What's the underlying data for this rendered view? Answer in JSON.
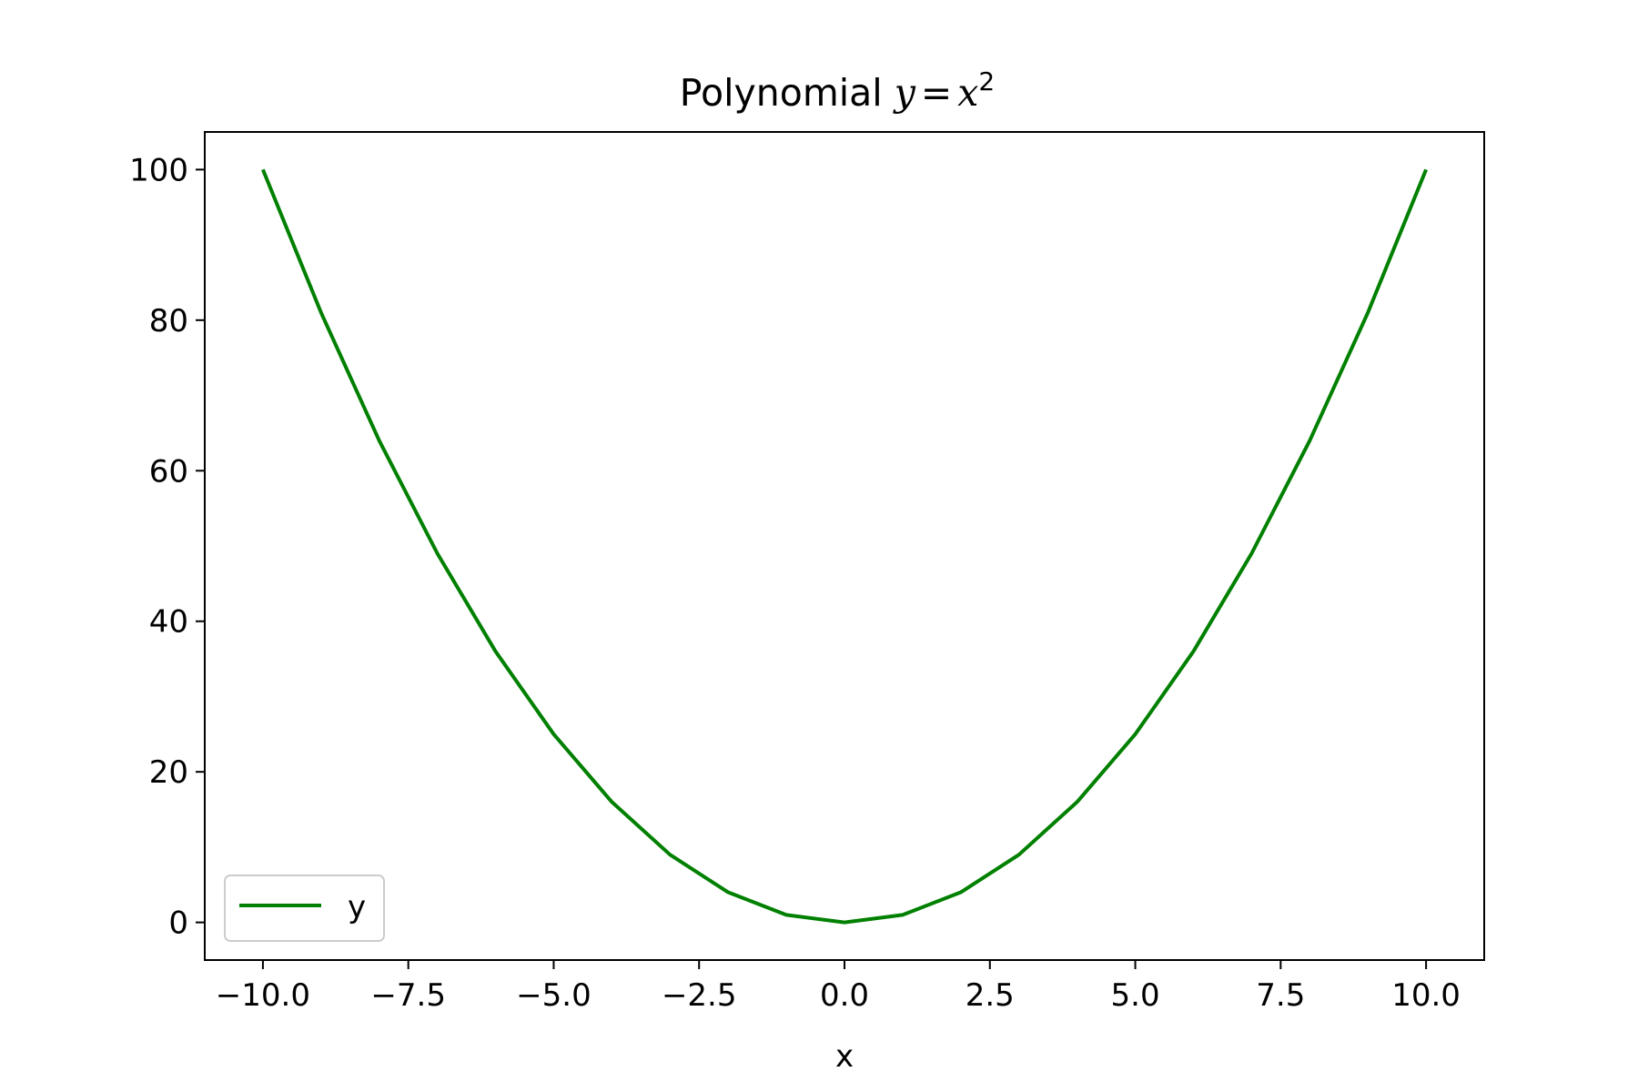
{
  "chart_data": {
    "type": "line",
    "title": {
      "prefix": "Polynomial ",
      "math_lhs": "y",
      "math_eq": "=",
      "math_rhs": "x",
      "math_exp": "2"
    },
    "xlabel": "x",
    "ylabel": "",
    "xlim": [
      -11,
      11
    ],
    "ylim": [
      -5,
      105
    ],
    "x_ticks": [
      -10.0,
      -7.5,
      -5.0,
      -2.5,
      0.0,
      2.5,
      5.0,
      7.5,
      10.0
    ],
    "x_tick_labels": [
      "−10.0",
      "−7.5",
      "−5.0",
      "−2.5",
      "0.0",
      "2.5",
      "5.0",
      "7.5",
      "10.0"
    ],
    "y_ticks": [
      0,
      20,
      40,
      60,
      80,
      100
    ],
    "y_tick_labels": [
      "0",
      "20",
      "40",
      "60",
      "80",
      "100"
    ],
    "grid": false,
    "legend_position": "lower-left",
    "series": [
      {
        "name": "y",
        "color": "#008000",
        "x": [
          -10,
          -9,
          -8,
          -7,
          -6,
          -5,
          -4,
          -3,
          -2,
          -1,
          0,
          1,
          2,
          3,
          4,
          5,
          6,
          7,
          8,
          9,
          10
        ],
        "y": [
          100,
          81,
          64,
          49,
          36,
          25,
          16,
          9,
          4,
          1,
          0,
          1,
          4,
          9,
          16,
          25,
          36,
          49,
          64,
          81,
          100
        ]
      }
    ]
  }
}
